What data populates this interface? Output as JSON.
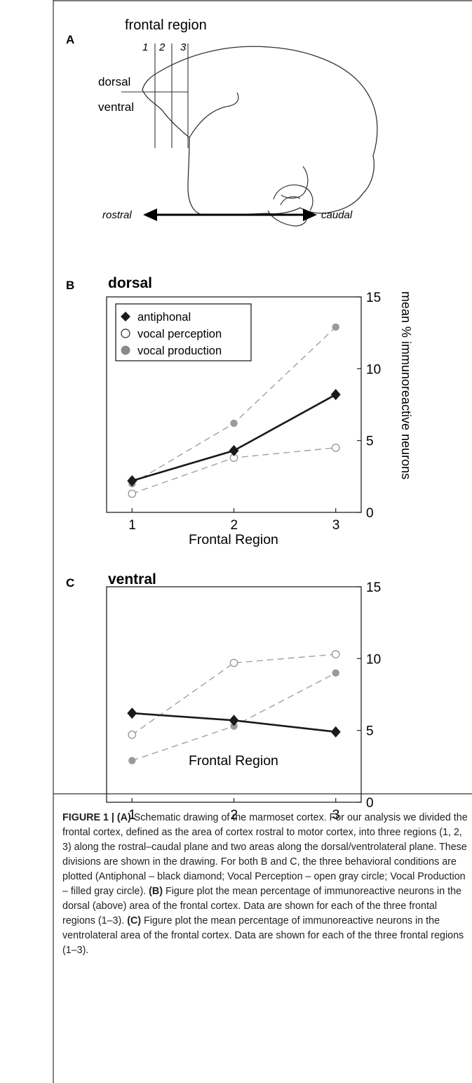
{
  "panel_a": {
    "label": "A",
    "title": "frontal region",
    "region_numbers": [
      "1",
      "2",
      "3"
    ],
    "dorsal_label": "dorsal",
    "ventral_label": "ventral",
    "rostral_label": "rostral",
    "caudal_label": "caudal"
  },
  "panel_b": {
    "label": "B",
    "title": "dorsal"
  },
  "panel_c": {
    "label": "C",
    "title": "ventral"
  },
  "y_axis_label": "mean % immunoreactive neurons",
  "legend": [
    "antiphonal",
    "vocal perception",
    "vocal production"
  ],
  "colors": {
    "antiphonal": "#1a1a1a",
    "open": "#9a9a9a",
    "filled": "#9a9a9a",
    "dashed": "#9a9a9a"
  },
  "chart_data": [
    {
      "type": "line",
      "title": "dorsal",
      "xlabel": "Frontal Region",
      "ylabel": "mean % immunoreactive neurons",
      "x": [
        1,
        2,
        3
      ],
      "xlim": [
        0.75,
        3.25
      ],
      "ylim": [
        0,
        15
      ],
      "yticks": [
        0,
        5,
        10,
        15
      ],
      "legend_position": "top-left",
      "series": [
        {
          "name": "antiphonal",
          "values": [
            2.2,
            4.3,
            8.2
          ]
        },
        {
          "name": "vocal perception",
          "values": [
            1.3,
            3.8,
            4.5
          ]
        },
        {
          "name": "vocal production",
          "values": [
            2.0,
            6.2,
            12.9
          ]
        }
      ]
    },
    {
      "type": "line",
      "title": "ventral",
      "xlabel": "Frontal Region",
      "ylabel": "",
      "x": [
        1,
        2,
        3
      ],
      "xlim": [
        0.75,
        3.25
      ],
      "ylim": [
        0,
        15
      ],
      "yticks": [
        0,
        5,
        10,
        15
      ],
      "series": [
        {
          "name": "antiphonal",
          "values": [
            6.2,
            5.7,
            4.9
          ]
        },
        {
          "name": "vocal perception",
          "values": [
            4.7,
            9.7,
            10.3
          ]
        },
        {
          "name": "vocal production",
          "values": [
            2.9,
            5.3,
            9.0
          ]
        }
      ]
    }
  ],
  "caption": {
    "label": "FIGURE 1 | (A)",
    "text_1": " Schematic drawing of the marmoset cortex. For our analysis we divided the frontal cortex, defined as the area of cortex rostral to motor cortex, into three regions (1, 2, 3) along the rostral–caudal plane and two areas along the dorsal/ventrolateral plane. These divisions are shown in the drawing. For both B and C, the three behavioral conditions are plotted (Antiphonal – black diamond; Vocal Perception – open gray circle; Vocal Production – filled gray circle). ",
    "b_label": "(B)",
    "text_2": " Figure plot the mean percentage of immunoreactive neurons in the dorsal (above) area of the frontal cortex. Data are shown for each of the three frontal regions (1–3). ",
    "c_label": "(C)",
    "text_3": " Figure plot the mean percentage of immunoreactive neurons in the ventrolateral area of the frontal cortex. Data are shown for each of the three frontal regions (1–3)."
  }
}
